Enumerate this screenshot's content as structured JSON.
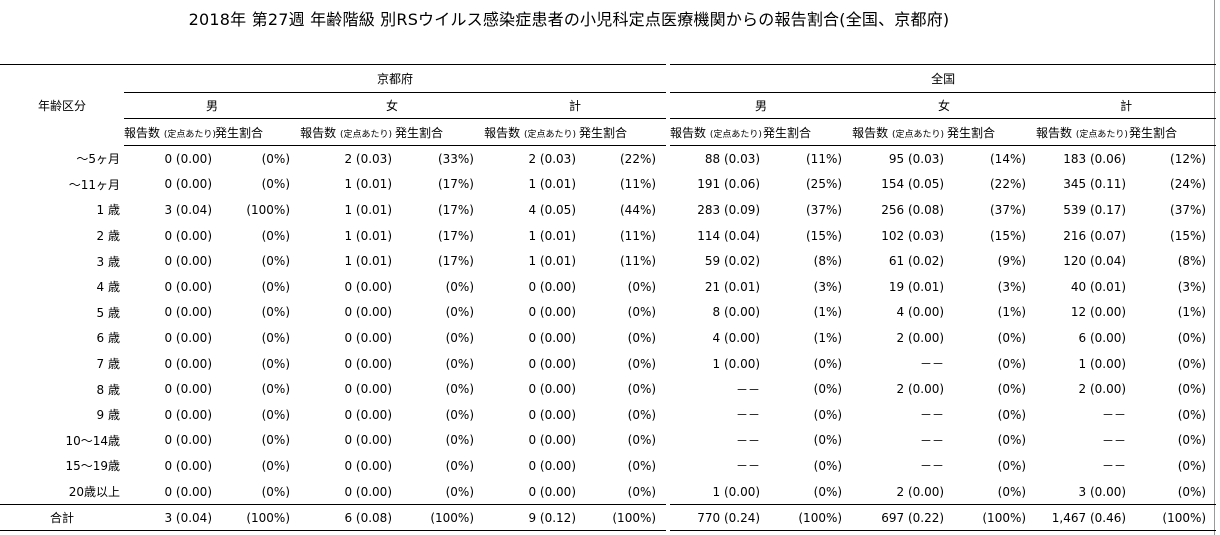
{
  "title": "2018年 第27週 年齢階級 別RSウイルス感染症患者の小児科定点医療機関からの報告割合(全国、京都府)",
  "headers": {
    "age_group": "年齢区分",
    "regions": [
      "京都府",
      "全国"
    ],
    "sexes": [
      "男",
      "女",
      "計"
    ],
    "count_label": "報告数",
    "per_site_label": "(定点あたり)",
    "rate_label": "発生割合"
  },
  "rows": [
    {
      "age": "～5ヶ月",
      "cells": [
        [
          "0 (0.00)",
          "(0%)"
        ],
        [
          "2 (0.03)",
          "(33%)"
        ],
        [
          "2 (0.03)",
          "(22%)"
        ],
        [
          "88 (0.03)",
          "(11%)"
        ],
        [
          "95 (0.03)",
          "(14%)"
        ],
        [
          "183 (0.06)",
          "(12%)"
        ]
      ]
    },
    {
      "age": "～11ヶ月",
      "cells": [
        [
          "0 (0.00)",
          "(0%)"
        ],
        [
          "1 (0.01)",
          "(17%)"
        ],
        [
          "1 (0.01)",
          "(11%)"
        ],
        [
          "191 (0.06)",
          "(25%)"
        ],
        [
          "154 (0.05)",
          "(22%)"
        ],
        [
          "345 (0.11)",
          "(24%)"
        ]
      ]
    },
    {
      "age": "1 歳",
      "cells": [
        [
          "3 (0.04)",
          "(100%)"
        ],
        [
          "1 (0.01)",
          "(17%)"
        ],
        [
          "4 (0.05)",
          "(44%)"
        ],
        [
          "283 (0.09)",
          "(37%)"
        ],
        [
          "256 (0.08)",
          "(37%)"
        ],
        [
          "539 (0.17)",
          "(37%)"
        ]
      ]
    },
    {
      "age": "2 歳",
      "cells": [
        [
          "0 (0.00)",
          "(0%)"
        ],
        [
          "1 (0.01)",
          "(17%)"
        ],
        [
          "1 (0.01)",
          "(11%)"
        ],
        [
          "114 (0.04)",
          "(15%)"
        ],
        [
          "102 (0.03)",
          "(15%)"
        ],
        [
          "216 (0.07)",
          "(15%)"
        ]
      ]
    },
    {
      "age": "3 歳",
      "cells": [
        [
          "0 (0.00)",
          "(0%)"
        ],
        [
          "1 (0.01)",
          "(17%)"
        ],
        [
          "1 (0.01)",
          "(11%)"
        ],
        [
          "59 (0.02)",
          "(8%)"
        ],
        [
          "61 (0.02)",
          "(9%)"
        ],
        [
          "120 (0.04)",
          "(8%)"
        ]
      ]
    },
    {
      "age": "4 歳",
      "cells": [
        [
          "0 (0.00)",
          "(0%)"
        ],
        [
          "0 (0.00)",
          "(0%)"
        ],
        [
          "0 (0.00)",
          "(0%)"
        ],
        [
          "21 (0.01)",
          "(3%)"
        ],
        [
          "19 (0.01)",
          "(3%)"
        ],
        [
          "40 (0.01)",
          "(3%)"
        ]
      ]
    },
    {
      "age": "5 歳",
      "cells": [
        [
          "0 (0.00)",
          "(0%)"
        ],
        [
          "0 (0.00)",
          "(0%)"
        ],
        [
          "0 (0.00)",
          "(0%)"
        ],
        [
          "8 (0.00)",
          "(1%)"
        ],
        [
          "4 (0.00)",
          "(1%)"
        ],
        [
          "12 (0.00)",
          "(1%)"
        ]
      ]
    },
    {
      "age": "6 歳",
      "cells": [
        [
          "0 (0.00)",
          "(0%)"
        ],
        [
          "0 (0.00)",
          "(0%)"
        ],
        [
          "0 (0.00)",
          "(0%)"
        ],
        [
          "4 (0.00)",
          "(1%)"
        ],
        [
          "2 (0.00)",
          "(0%)"
        ],
        [
          "6 (0.00)",
          "(0%)"
        ]
      ]
    },
    {
      "age": "7 歳",
      "cells": [
        [
          "0 (0.00)",
          "(0%)"
        ],
        [
          "0 (0.00)",
          "(0%)"
        ],
        [
          "0 (0.00)",
          "(0%)"
        ],
        [
          "1 (0.00)",
          "(0%)"
        ],
        [
          "－－",
          "(0%)"
        ],
        [
          "1 (0.00)",
          "(0%)"
        ]
      ]
    },
    {
      "age": "8 歳",
      "cells": [
        [
          "0 (0.00)",
          "(0%)"
        ],
        [
          "0 (0.00)",
          "(0%)"
        ],
        [
          "0 (0.00)",
          "(0%)"
        ],
        [
          "－－",
          "(0%)"
        ],
        [
          "2 (0.00)",
          "(0%)"
        ],
        [
          "2 (0.00)",
          "(0%)"
        ]
      ]
    },
    {
      "age": "9 歳",
      "cells": [
        [
          "0 (0.00)",
          "(0%)"
        ],
        [
          "0 (0.00)",
          "(0%)"
        ],
        [
          "0 (0.00)",
          "(0%)"
        ],
        [
          "－－",
          "(0%)"
        ],
        [
          "－－",
          "(0%)"
        ],
        [
          "－－",
          "(0%)"
        ]
      ]
    },
    {
      "age": "10～14歳",
      "cells": [
        [
          "0 (0.00)",
          "(0%)"
        ],
        [
          "0 (0.00)",
          "(0%)"
        ],
        [
          "0 (0.00)",
          "(0%)"
        ],
        [
          "－－",
          "(0%)"
        ],
        [
          "－－",
          "(0%)"
        ],
        [
          "－－",
          "(0%)"
        ]
      ]
    },
    {
      "age": "15～19歳",
      "cells": [
        [
          "0 (0.00)",
          "(0%)"
        ],
        [
          "0 (0.00)",
          "(0%)"
        ],
        [
          "0 (0.00)",
          "(0%)"
        ],
        [
          "－－",
          "(0%)"
        ],
        [
          "－－",
          "(0%)"
        ],
        [
          "－－",
          "(0%)"
        ]
      ]
    },
    {
      "age": "20歳以上",
      "cells": [
        [
          "0 (0.00)",
          "(0%)"
        ],
        [
          "0 (0.00)",
          "(0%)"
        ],
        [
          "0 (0.00)",
          "(0%)"
        ],
        [
          "1 (0.00)",
          "(0%)"
        ],
        [
          "2 (0.00)",
          "(0%)"
        ],
        [
          "3 (0.00)",
          "(0%)"
        ]
      ]
    }
  ],
  "total": {
    "age": "合計",
    "cells": [
      [
        "3 (0.04)",
        "(100%)"
      ],
      [
        "6 (0.08)",
        "(100%)"
      ],
      [
        "9 (0.12)",
        "(100%)"
      ],
      [
        "770 (0.24)",
        "(100%)"
      ],
      [
        "697 (0.22)",
        "(100%)"
      ],
      [
        "1,467 (0.46)",
        "(100%)"
      ]
    ]
  }
}
